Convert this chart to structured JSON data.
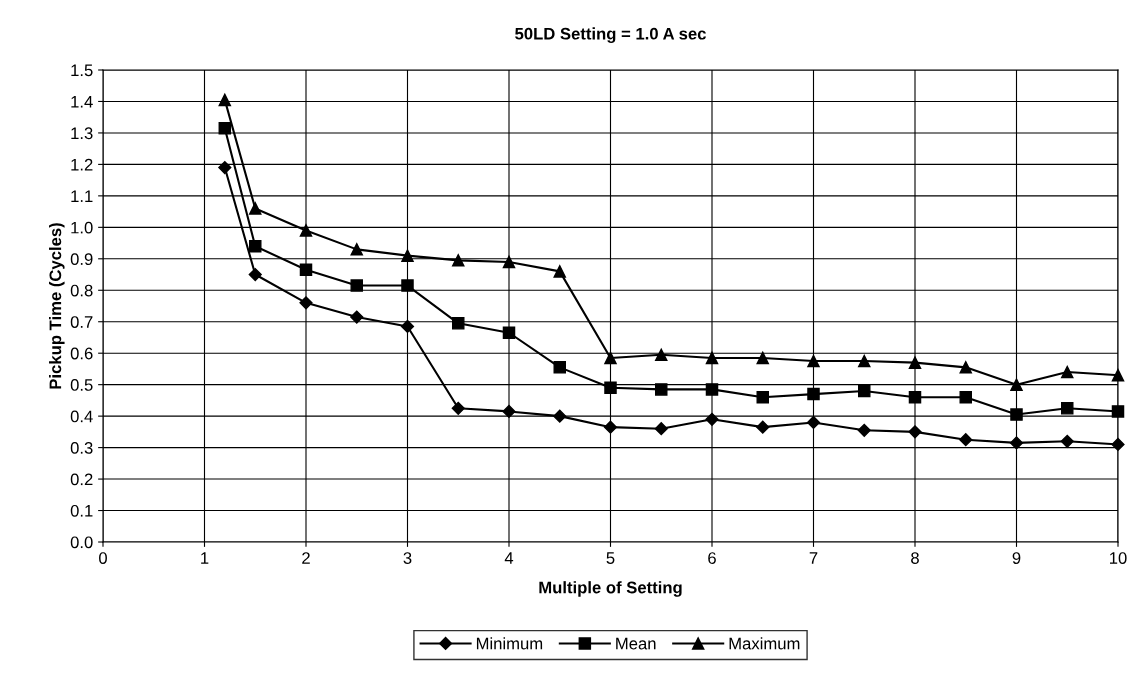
{
  "chart_data": {
    "type": "line",
    "title": "50LD Setting = 1.0 A sec",
    "xlabel": "Multiple of Setting",
    "ylabel": "Pickup Time (Cycles)",
    "x": [
      1.2,
      1.5,
      2,
      2.5,
      3,
      3.5,
      4,
      4.5,
      5,
      5.5,
      6,
      6.5,
      7,
      7.5,
      8,
      8.5,
      9,
      9.5,
      10
    ],
    "series": [
      {
        "name": "Minimum",
        "color": "#000000",
        "marker": "diamond",
        "values": [
          1.19,
          0.85,
          0.76,
          0.715,
          0.685,
          0.425,
          0.415,
          0.4,
          0.365,
          0.36,
          0.39,
          0.365,
          0.38,
          0.355,
          0.35,
          0.325,
          0.315,
          0.32,
          0.31
        ]
      },
      {
        "name": "Mean",
        "color": "#000000",
        "marker": "square",
        "values": [
          1.315,
          0.94,
          0.865,
          0.815,
          0.815,
          0.695,
          0.665,
          0.555,
          0.49,
          0.485,
          0.485,
          0.46,
          0.47,
          0.48,
          0.46,
          0.46,
          0.405,
          0.425,
          0.415
        ]
      },
      {
        "name": "Maximum",
        "color": "#000000",
        "marker": "triangle",
        "values": [
          1.405,
          1.06,
          0.99,
          0.93,
          0.91,
          0.895,
          0.89,
          0.86,
          0.585,
          0.595,
          0.585,
          0.585,
          0.575,
          0.575,
          0.57,
          0.555,
          0.5,
          0.54,
          0.53
        ]
      }
    ],
    "xlim": [
      0,
      10
    ],
    "xticks": [
      0,
      1,
      2,
      3,
      4,
      5,
      6,
      7,
      8,
      9,
      10
    ],
    "ylim": [
      0,
      1.5
    ],
    "yticks": [
      {
        "value": 0,
        "label": "0.0"
      },
      0.1,
      0.2,
      0.3,
      0.4,
      0.5,
      0.6,
      0.7,
      0.8,
      0.9,
      {
        "value": 1,
        "label": "1.0"
      },
      1.1,
      1.2,
      1.3,
      1.4,
      1.5
    ],
    "grid": true,
    "legend": "bottom",
    "line_style": "solid"
  }
}
